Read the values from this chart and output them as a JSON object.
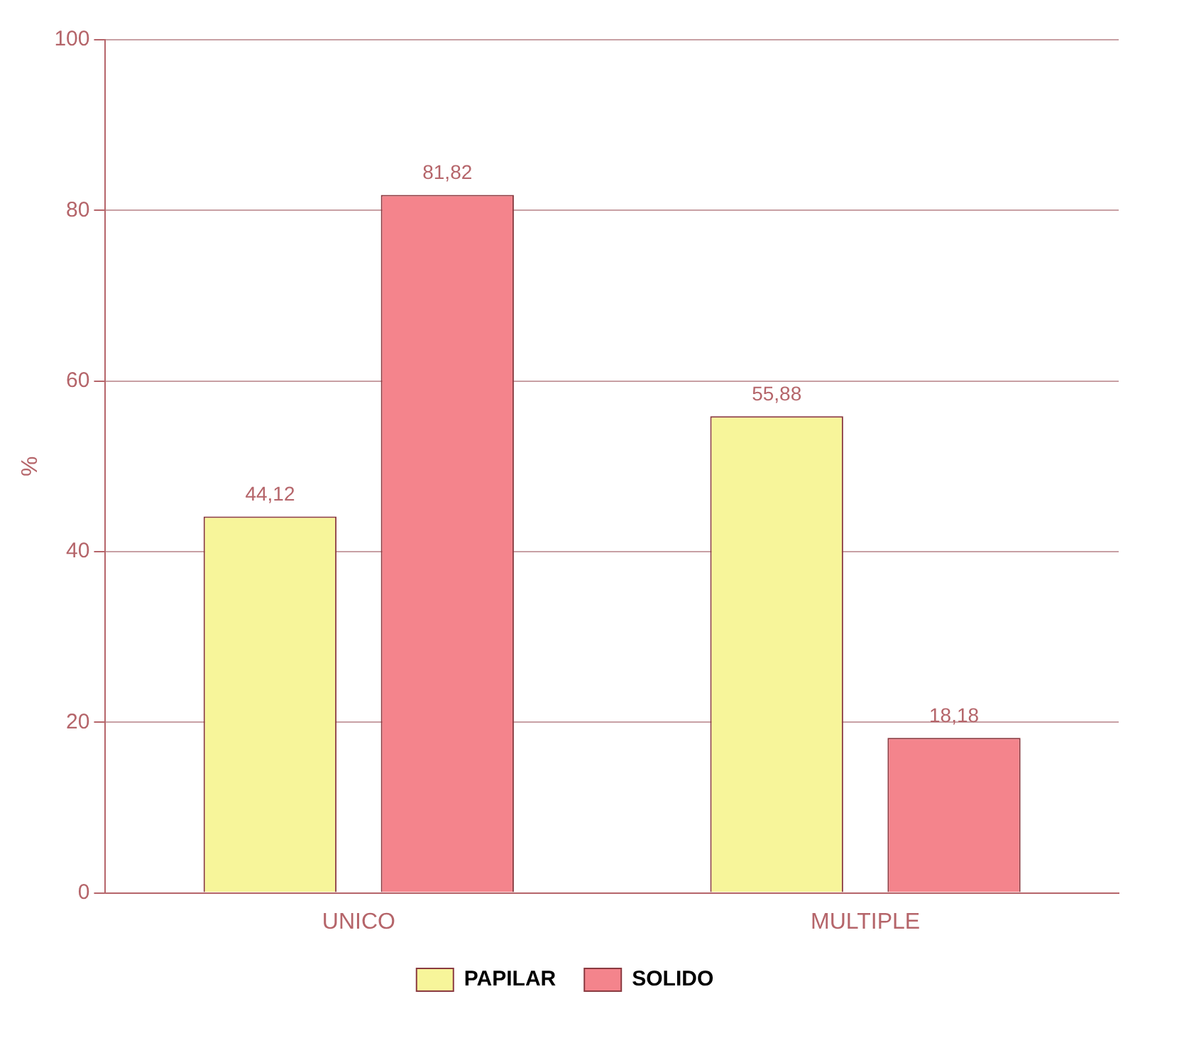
{
  "chart_data": {
    "type": "bar",
    "ylabel": "%",
    "categories": [
      "UNICO",
      "MULTIPLE"
    ],
    "series": [
      {
        "name": "PAPILAR",
        "color": "#f7f59a",
        "values": [
          44.12,
          55.88
        ],
        "value_labels": [
          "44,12",
          "55,88"
        ]
      },
      {
        "name": "SOLIDO",
        "color": "#f4848c",
        "values": [
          81.82,
          18.18
        ],
        "value_labels": [
          "81,82",
          "18,18"
        ]
      }
    ],
    "ylim": [
      0,
      100
    ],
    "yticks": [
      0,
      20,
      40,
      60,
      80,
      100
    ],
    "grid": "y",
    "legend": "bottom"
  }
}
